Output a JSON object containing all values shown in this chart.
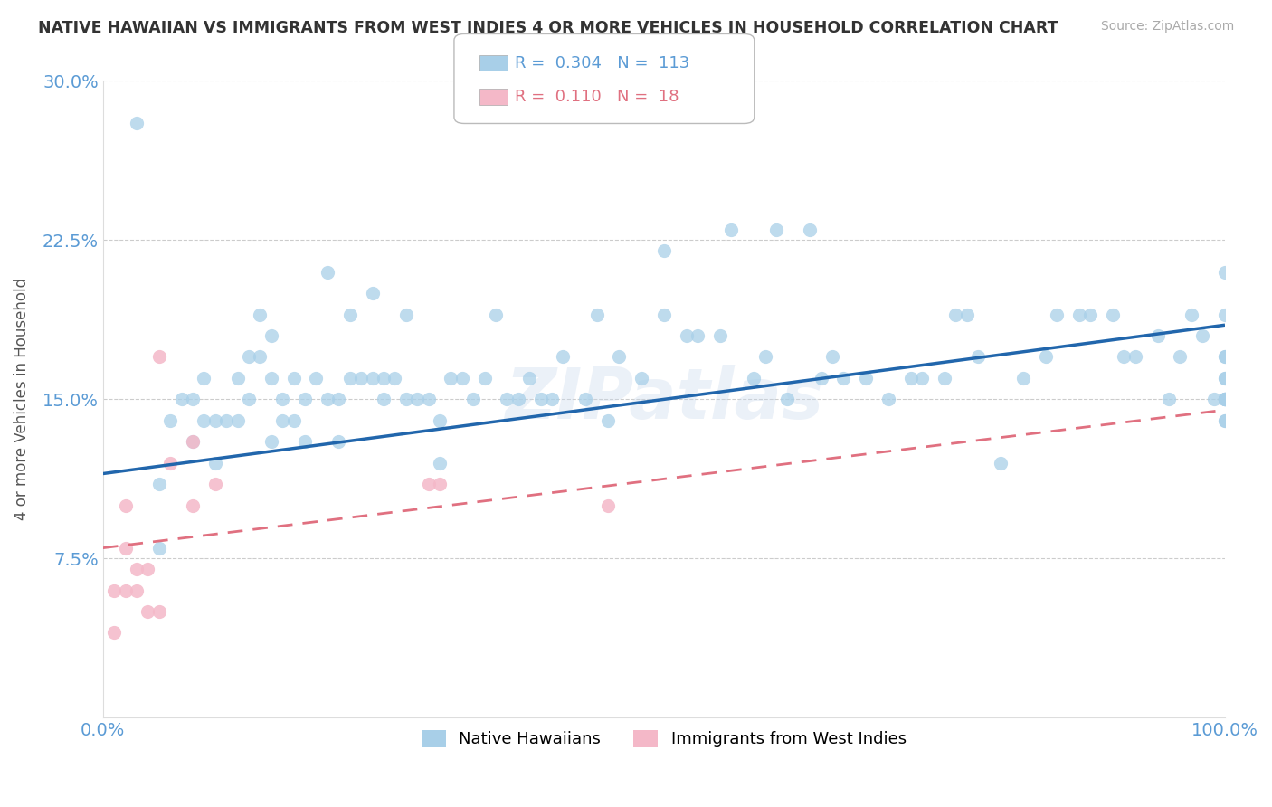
{
  "title": "NATIVE HAWAIIAN VS IMMIGRANTS FROM WEST INDIES 4 OR MORE VEHICLES IN HOUSEHOLD CORRELATION CHART",
  "source": "Source: ZipAtlas.com",
  "ylabel": "4 or more Vehicles in Household",
  "xlim": [
    0,
    100
  ],
  "ylim": [
    0,
    30
  ],
  "yticks": [
    0,
    7.5,
    15.0,
    22.5,
    30.0
  ],
  "ytick_labels": [
    "",
    "7.5%",
    "15.0%",
    "22.5%",
    "30.0%"
  ],
  "xticks": [
    0,
    100
  ],
  "xtick_labels": [
    "0.0%",
    "100.0%"
  ],
  "blue_R": 0.304,
  "blue_N": 113,
  "pink_R": 0.11,
  "pink_N": 18,
  "blue_color": "#a8cfe8",
  "pink_color": "#f4b8c8",
  "blue_line_color": "#2166ac",
  "pink_line_color": "#e07080",
  "background_color": "#ffffff",
  "grid_color": "#cccccc",
  "title_color": "#333333",
  "axis_color": "#5b9bd5",
  "watermark": "ZIPatlas",
  "legend_blue_label": "Native Hawaiians",
  "legend_pink_label": "Immigrants from West Indies",
  "blue_x": [
    3,
    5,
    5,
    6,
    7,
    8,
    8,
    9,
    9,
    10,
    10,
    11,
    12,
    12,
    13,
    13,
    14,
    14,
    15,
    15,
    15,
    16,
    16,
    17,
    17,
    18,
    18,
    19,
    20,
    20,
    21,
    21,
    22,
    22,
    23,
    24,
    24,
    25,
    25,
    26,
    27,
    27,
    28,
    29,
    30,
    30,
    31,
    32,
    33,
    34,
    35,
    36,
    37,
    38,
    39,
    40,
    41,
    43,
    44,
    45,
    46,
    48,
    50,
    50,
    52,
    53,
    55,
    56,
    58,
    59,
    60,
    61,
    63,
    64,
    65,
    66,
    68,
    70,
    72,
    73,
    75,
    76,
    77,
    78,
    80,
    82,
    84,
    85,
    87,
    88,
    90,
    91,
    92,
    94,
    95,
    96,
    97,
    98,
    99,
    100,
    100,
    100,
    100,
    100,
    100,
    100,
    100,
    100,
    100,
    100,
    100,
    100,
    100
  ],
  "blue_y": [
    28,
    11,
    8,
    14,
    15,
    15,
    13,
    14,
    16,
    14,
    12,
    14,
    16,
    14,
    17,
    15,
    19,
    17,
    18,
    16,
    13,
    15,
    14,
    16,
    14,
    15,
    13,
    16,
    21,
    15,
    15,
    13,
    19,
    16,
    16,
    20,
    16,
    16,
    15,
    16,
    19,
    15,
    15,
    15,
    14,
    12,
    16,
    16,
    15,
    16,
    19,
    15,
    15,
    16,
    15,
    15,
    17,
    15,
    19,
    14,
    17,
    16,
    19,
    22,
    18,
    18,
    18,
    23,
    16,
    17,
    23,
    15,
    23,
    16,
    17,
    16,
    16,
    15,
    16,
    16,
    16,
    19,
    19,
    17,
    12,
    16,
    17,
    19,
    19,
    19,
    19,
    17,
    17,
    18,
    15,
    17,
    19,
    18,
    15,
    15,
    15,
    16,
    17,
    17,
    19,
    21,
    15,
    15,
    16,
    15,
    14,
    14,
    15
  ],
  "pink_x": [
    1,
    1,
    2,
    2,
    2,
    3,
    3,
    4,
    4,
    5,
    5,
    6,
    8,
    8,
    10,
    29,
    30,
    45
  ],
  "pink_y": [
    6,
    4,
    10,
    8,
    6,
    7,
    6,
    7,
    5,
    5,
    17,
    12,
    13,
    10,
    11,
    11,
    11,
    10
  ],
  "blue_line_x0": 0,
  "blue_line_y0": 11.5,
  "blue_line_x1": 100,
  "blue_line_y1": 18.5,
  "pink_line_x0": 0,
  "pink_line_y0": 8.0,
  "pink_line_x1": 100,
  "pink_line_y1": 14.5
}
